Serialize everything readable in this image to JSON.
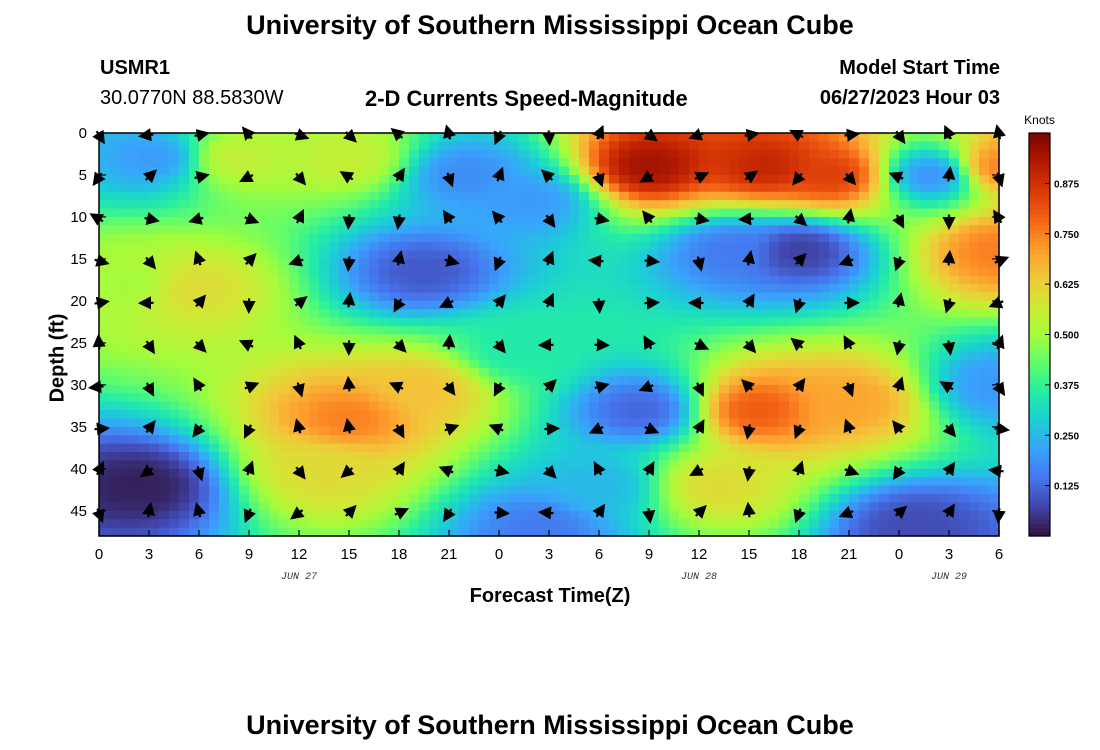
{
  "header": {
    "title": "University of Southern Mississippi Ocean Cube",
    "station_id": "USMR1",
    "coordinates": "30.0770N  88.5830W",
    "plot_title": "2-D Currents Speed-Magnitude",
    "model_start_label": "Model Start Time",
    "model_start_value": "06/27/2023 Hour 03"
  },
  "footer": {
    "title": "University of Southern Mississippi Ocean Cube"
  },
  "chart_data": {
    "type": "heatmap",
    "title": "2-D Currents Speed-Magnitude",
    "xlabel": "Forecast Time(Z)",
    "ylabel": "Depth (ft)",
    "x_tick_labels": [
      "0",
      "3",
      "6",
      "9",
      "12",
      "15",
      "18",
      "21",
      "0",
      "3",
      "6",
      "9",
      "12",
      "15",
      "18",
      "21",
      "0",
      "3",
      "6"
    ],
    "x_hours": [
      0,
      3,
      6,
      9,
      12,
      15,
      18,
      21,
      24,
      27,
      30,
      33,
      36,
      39,
      42,
      45,
      48,
      51,
      54
    ],
    "date_labels": [
      {
        "text": "JUN 27",
        "hour": 12
      },
      {
        "text": "JUN 28",
        "hour": 36
      },
      {
        "text": "JUN 29",
        "hour": 51
      }
    ],
    "y_ticks": [
      0,
      5,
      10,
      15,
      20,
      25,
      30,
      35,
      40,
      45
    ],
    "y_range": [
      0,
      48
    ],
    "x_range": [
      0,
      54
    ],
    "colorbar": {
      "label": "Knots",
      "ticks": [
        "0.875",
        "0.750",
        "0.625",
        "0.500",
        "0.375",
        "0.250",
        "0.125"
      ],
      "tick_values": [
        0.875,
        0.75,
        0.625,
        0.5,
        0.375,
        0.25,
        0.125
      ],
      "range": [
        0,
        1.0
      ]
    },
    "colormap": [
      "#30123b",
      "#4145ab",
      "#4675ed",
      "#39a2fc",
      "#1bcfd4",
      "#24eca6",
      "#61fc6c",
      "#a4fc3b",
      "#d1e834",
      "#f3c63a",
      "#fe9b2d",
      "#f36315",
      "#d93806",
      "#b11901",
      "#7a0402"
    ],
    "speed_hotspots": [
      {
        "hour": 3.5,
        "depth": 3,
        "speed": 0.2
      },
      {
        "hour": 8,
        "depth": 3,
        "speed": 0.55
      },
      {
        "hour": 15,
        "depth": 3,
        "speed": 0.55
      },
      {
        "hour": 22,
        "depth": 5,
        "speed": 0.18
      },
      {
        "hour": 26,
        "depth": 8,
        "speed": 0.2
      },
      {
        "hour": 33,
        "depth": 4,
        "speed": 0.95
      },
      {
        "hour": 40,
        "depth": 4,
        "speed": 0.9
      },
      {
        "hour": 44,
        "depth": 5,
        "speed": 0.85
      },
      {
        "hour": 50,
        "depth": 5,
        "speed": 0.18
      },
      {
        "hour": 54,
        "depth": 4,
        "speed": 0.75
      },
      {
        "hour": 5.5,
        "depth": 18.5,
        "speed": 0.6
      },
      {
        "hour": 2,
        "depth": 18,
        "speed": 0.5
      },
      {
        "hour": 19.5,
        "depth": 16.5,
        "speed": 0.1
      },
      {
        "hour": 42,
        "depth": 14,
        "speed": 0.06
      },
      {
        "hour": 38,
        "depth": 14,
        "speed": 0.15
      },
      {
        "hour": 54,
        "depth": 14,
        "speed": 0.75
      },
      {
        "hour": 15,
        "depth": 34,
        "speed": 0.75
      },
      {
        "hour": 19.5,
        "depth": 30.5,
        "speed": 0.65
      },
      {
        "hour": 13.5,
        "depth": 40,
        "speed": 0.6
      },
      {
        "hour": 32.5,
        "depth": 33,
        "speed": 0.12
      },
      {
        "hour": 39.5,
        "depth": 33,
        "speed": 0.8
      },
      {
        "hour": 45,
        "depth": 32,
        "speed": 0.7
      },
      {
        "hour": 37,
        "depth": 42,
        "speed": 0.6
      },
      {
        "hour": 2.5,
        "depth": 42,
        "speed": 0.02
      },
      {
        "hour": 49,
        "depth": 47,
        "speed": 0.08
      },
      {
        "hour": 26.5,
        "depth": 47,
        "speed": 0.15
      },
      {
        "hour": 30,
        "depth": 42,
        "speed": 0.25
      },
      {
        "hour": 54,
        "depth": 30,
        "speed": 0.2
      },
      {
        "hour": 25,
        "depth": 26,
        "speed": 0.35
      }
    ],
    "background_speed": 0.25,
    "vector_grid": {
      "x_hours": [
        0,
        3,
        6,
        9,
        12,
        15,
        18,
        21,
        24,
        27,
        30,
        33,
        36,
        39,
        42,
        45,
        48,
        51,
        54
      ],
      "depths": [
        0,
        5,
        10,
        15,
        20,
        25,
        30,
        35,
        40,
        45
      ]
    }
  }
}
